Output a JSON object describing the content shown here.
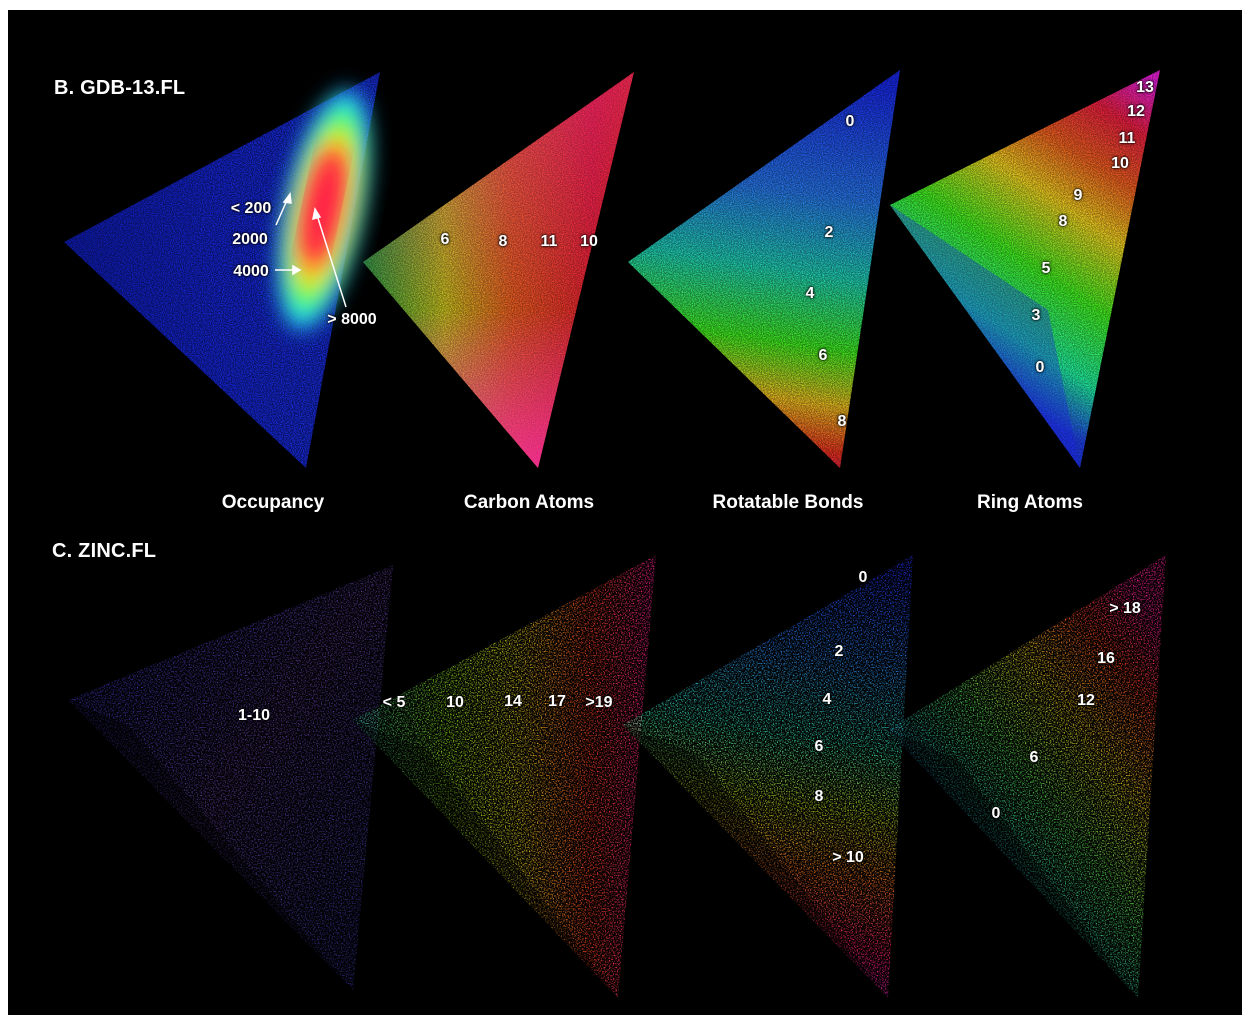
{
  "sections": {
    "gdb": {
      "title": "B. GDB-13.FL"
    },
    "zinc": {
      "title": "C. ZINC.FL"
    }
  },
  "column_labels": [
    "Occupancy",
    "Carbon Atoms",
    "Rotatable Bonds",
    "Ring Atoms"
  ],
  "colors": {
    "background": "#000000",
    "scale_low": "#1a2cff",
    "scale_mid": "#22ff22",
    "scale_high": "#ff1a1a",
    "scale_top": "#ff22ee",
    "annotation_text": "#ffffff"
  },
  "gdb_annotations": {
    "occupancy": [
      "< 200",
      "2000",
      "4000",
      "> 8000"
    ],
    "carbon_atoms": [
      "6",
      "8",
      "11",
      "10"
    ],
    "rotatable_bonds": [
      "0",
      "2",
      "4",
      "6",
      "8"
    ],
    "ring_atoms": [
      "13",
      "12",
      "11",
      "10",
      "9",
      "8",
      "5",
      "3",
      "0"
    ]
  },
  "zinc_annotations": {
    "occupancy": [
      "1-10"
    ],
    "carbon_atoms": [
      "< 5",
      "10",
      "14",
      "17",
      ">19"
    ],
    "rotatable_bonds": [
      "0",
      "2",
      "4",
      "6",
      "8",
      "> 10"
    ],
    "ring_atoms": [
      "> 18",
      "16",
      "12",
      "6",
      "0"
    ]
  }
}
